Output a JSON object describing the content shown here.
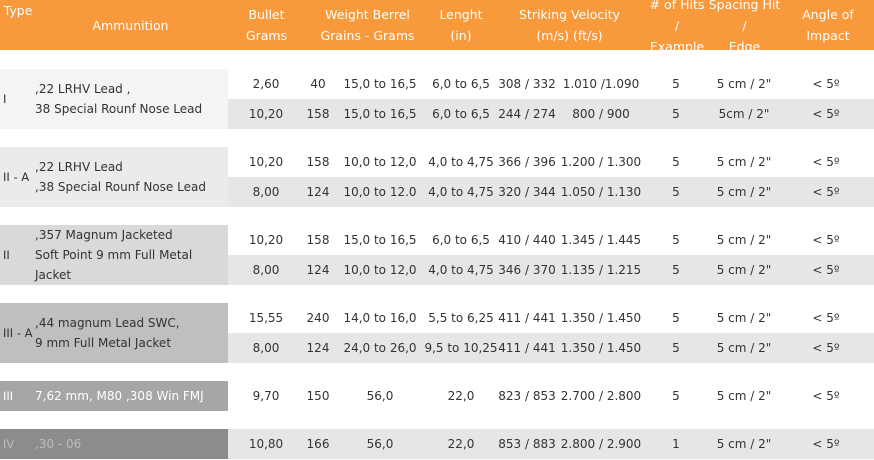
{
  "headers": [
    {
      "lines": [
        "Type"
      ]
    },
    {
      "lines": [
        "Ammunition"
      ]
    },
    {
      "lines": [
        "Bullet Grams"
      ]
    },
    {
      "lines": [
        "Weight Berrel",
        "Grains - Grams"
      ]
    },
    {
      "lines": [
        "Lenght",
        "(in)"
      ]
    },
    {
      "lines": [
        "Striking Velocity",
        "(m/s) (ft/s)"
      ]
    },
    {
      "lines": [
        "# of Hits /",
        "Example"
      ]
    },
    {
      "lines": [
        "Spacing Hit /",
        "Edge"
      ]
    },
    {
      "lines": [
        "Angle of Impact"
      ]
    }
  ],
  "groups": [
    {
      "type": "I",
      "ammunition": [
        ",22 LRHV Lead ,",
        "38 Special Rounf Nose Lead"
      ],
      "rows": [
        {
          "bullet_grams": "2,60",
          "grains": "40",
          "grams": "15,0 to 16,5",
          "length": "6,0 to 6,5",
          "velocity_ms": "308 / 332",
          "velocity_fts": "1.010 /1.090",
          "hits": "5",
          "spacing": "5 cm / 2\"",
          "angle": "< 5º"
        },
        {
          "bullet_grams": "10,20",
          "grains": "158",
          "grams": "15,0 to 16,5",
          "length": "6,0 to 6,5",
          "velocity_ms": "244 / 274",
          "velocity_fts": "800 / 900",
          "hits": "5",
          "spacing": "5cm / 2\"",
          "angle": "< 5º"
        }
      ]
    },
    {
      "type": "II - A",
      "ammunition": [
        ",22 LRHV Lead",
        ",38 Special Rounf Nose Lead"
      ],
      "rows": [
        {
          "bullet_grams": "10,20",
          "grains": "158",
          "grams": "10,0 to 12,0",
          "length": "4,0 to 4,75",
          "velocity_ms": "366 / 396",
          "velocity_fts": "1.200 / 1.300",
          "hits": "5",
          "spacing": "5 cm / 2\"",
          "angle": "< 5º"
        },
        {
          "bullet_grams": "8,00",
          "grains": "124",
          "grams": "10,0 to 12.0",
          "length": "4,0 to 4,75",
          "velocity_ms": "320 / 344",
          "velocity_fts": "1.050 / 1.130",
          "hits": "5",
          "spacing": "5 cm / 2\"",
          "angle": "< 5º"
        }
      ]
    },
    {
      "type": "II",
      "ammunition": [
        ",357 Magnum Jacketed",
        "Soft Point 9 mm Full Metal Jacket"
      ],
      "rows": [
        {
          "bullet_grams": "10,20",
          "grains": "158",
          "grams": "15,0 to 16,5",
          "length": "6,0 to 6,5",
          "velocity_ms": "410 / 440",
          "velocity_fts": "1.345 / 1.445",
          "hits": "5",
          "spacing": "5 cm / 2\"",
          "angle": "< 5º"
        },
        {
          "bullet_grams": "8,00",
          "grains": "124",
          "grams": "10,0 to 12,0",
          "length": "4,0 to 4,75",
          "velocity_ms": "346 / 370",
          "velocity_fts": "1.135 / 1.215",
          "hits": "5",
          "spacing": "5 cm / 2\"",
          "angle": "< 5º"
        }
      ]
    },
    {
      "type": "III - A",
      "ammunition": [
        ",44 magnum Lead SWC,",
        "9 mm Full Metal Jacket"
      ],
      "rows": [
        {
          "bullet_grams": "15,55",
          "grains": "240",
          "grams": "14,0 to 16,0",
          "length": "5,5 to 6,25",
          "velocity_ms": "411 / 441",
          "velocity_fts": "1.350 / 1.450",
          "hits": "5",
          "spacing": "5 cm / 2\"",
          "angle": "< 5º"
        },
        {
          "bullet_grams": "8,00",
          "grains": "124",
          "grams": "24,0 to 26,0",
          "length": "9,5 to 10,25",
          "velocity_ms": "411 / 441",
          "velocity_fts": "1.350 / 1.450",
          "hits": "5",
          "spacing": "5 cm / 2\"",
          "angle": "< 5º"
        }
      ]
    },
    {
      "type": "III",
      "ammunition": [
        "7,62 mm, M80 ,308 Win FMJ"
      ],
      "rows": [
        {
          "bullet_grams": "9,70",
          "grains": "150",
          "grams": "56,0",
          "length": "22,0",
          "velocity_ms": "823 / 853",
          "velocity_fts": "2.700 / 2.800",
          "hits": "5",
          "spacing": "5 cm / 2\"",
          "angle": "< 5º"
        }
      ]
    },
    {
      "type": "IV",
      "ammunition": [
        ",30 - 06"
      ],
      "rows": [
        {
          "bullet_grams": "10,80",
          "grains": "166",
          "grams": "56,0",
          "length": "22,0",
          "velocity_ms": "853 / 883",
          "velocity_fts": "2.800 / 2.900",
          "hits": "1",
          "spacing": "5 cm / 2\"",
          "angle": "< 5º"
        }
      ]
    }
  ],
  "colors": {
    "header_bg": "#f8993c",
    "header_text": "#ffffff",
    "row_alt": "#e6e6e6",
    "type_shades": [
      "#f4f4f4",
      "#ebebeb",
      "#d9d9d9",
      "#bfbfbf",
      "#a6a6a6",
      "#8c8c8c"
    ],
    "type_text": [
      "#333333",
      "#333333",
      "#333333",
      "#333333",
      "#ffffff",
      "#bdbdbd"
    ]
  }
}
